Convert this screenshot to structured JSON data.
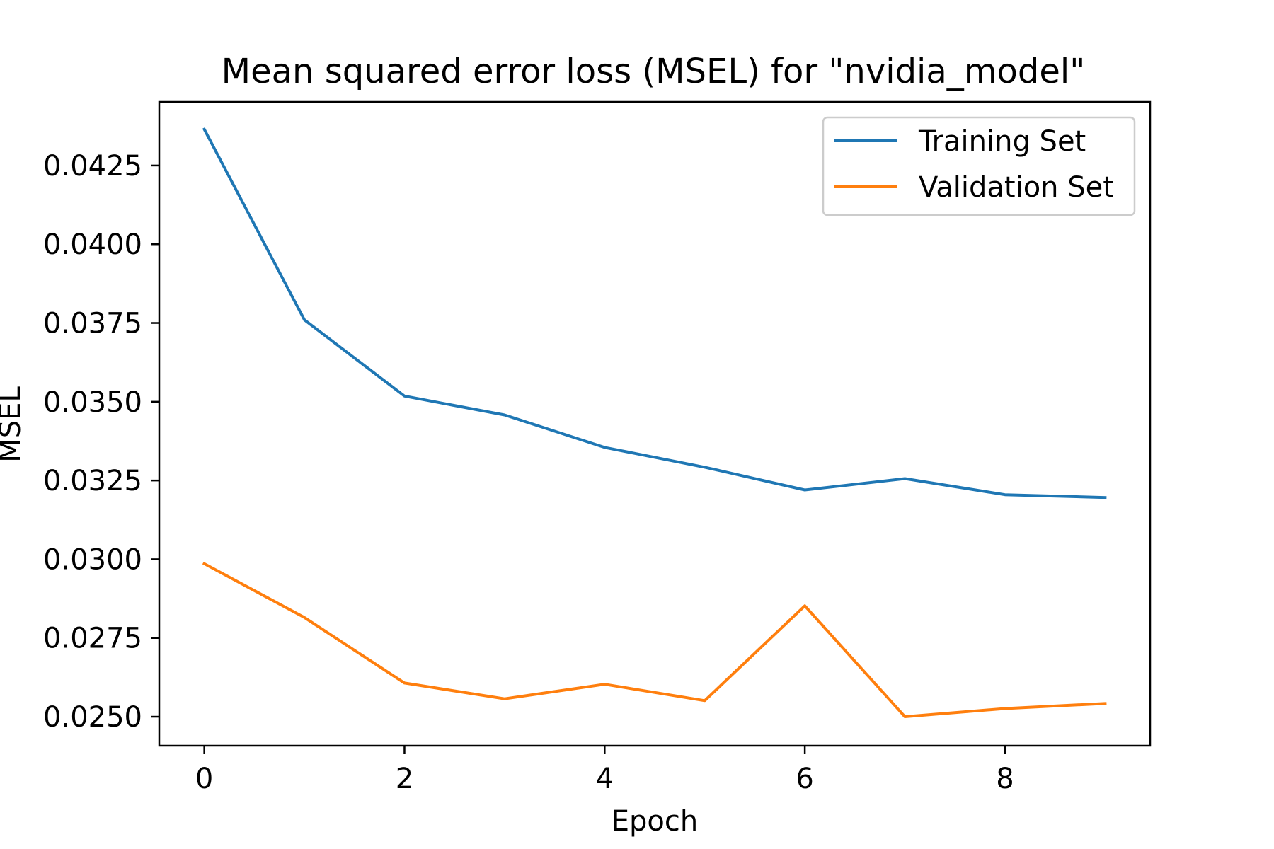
{
  "chart_data": {
    "type": "line",
    "title": "Mean squared error loss (MSEL) for \"nvidia_model\"",
    "xlabel": "Epoch",
    "ylabel": "MSEL",
    "x": [
      0,
      1,
      2,
      3,
      4,
      5,
      6,
      7,
      8,
      9
    ],
    "xlim": [
      -0.45,
      9.45
    ],
    "ylim": [
      0.02408,
      0.04452
    ],
    "xticks": [
      0,
      2,
      4,
      6,
      8
    ],
    "xtick_labels": [
      "0",
      "2",
      "4",
      "6",
      "8"
    ],
    "yticks": [
      0.025,
      0.0275,
      0.03,
      0.0325,
      0.035,
      0.0375,
      0.04,
      0.0425
    ],
    "ytick_labels": [
      "0.0250",
      "0.0275",
      "0.0300",
      "0.0325",
      "0.0350",
      "0.0375",
      "0.0400",
      "0.0425"
    ],
    "grid": false,
    "legend_position": "top-right",
    "series": [
      {
        "name": "Training Set",
        "color": "#1f77b4",
        "values": [
          0.04365,
          0.0376,
          0.03518,
          0.03458,
          0.03355,
          0.03292,
          0.0322,
          0.03256,
          0.03205,
          0.03196
        ]
      },
      {
        "name": "Validation Set",
        "color": "#ff7f0e",
        "values": [
          0.02986,
          0.02815,
          0.02607,
          0.02557,
          0.02603,
          0.02551,
          0.02852,
          0.025,
          0.02526,
          0.02542
        ]
      }
    ]
  }
}
